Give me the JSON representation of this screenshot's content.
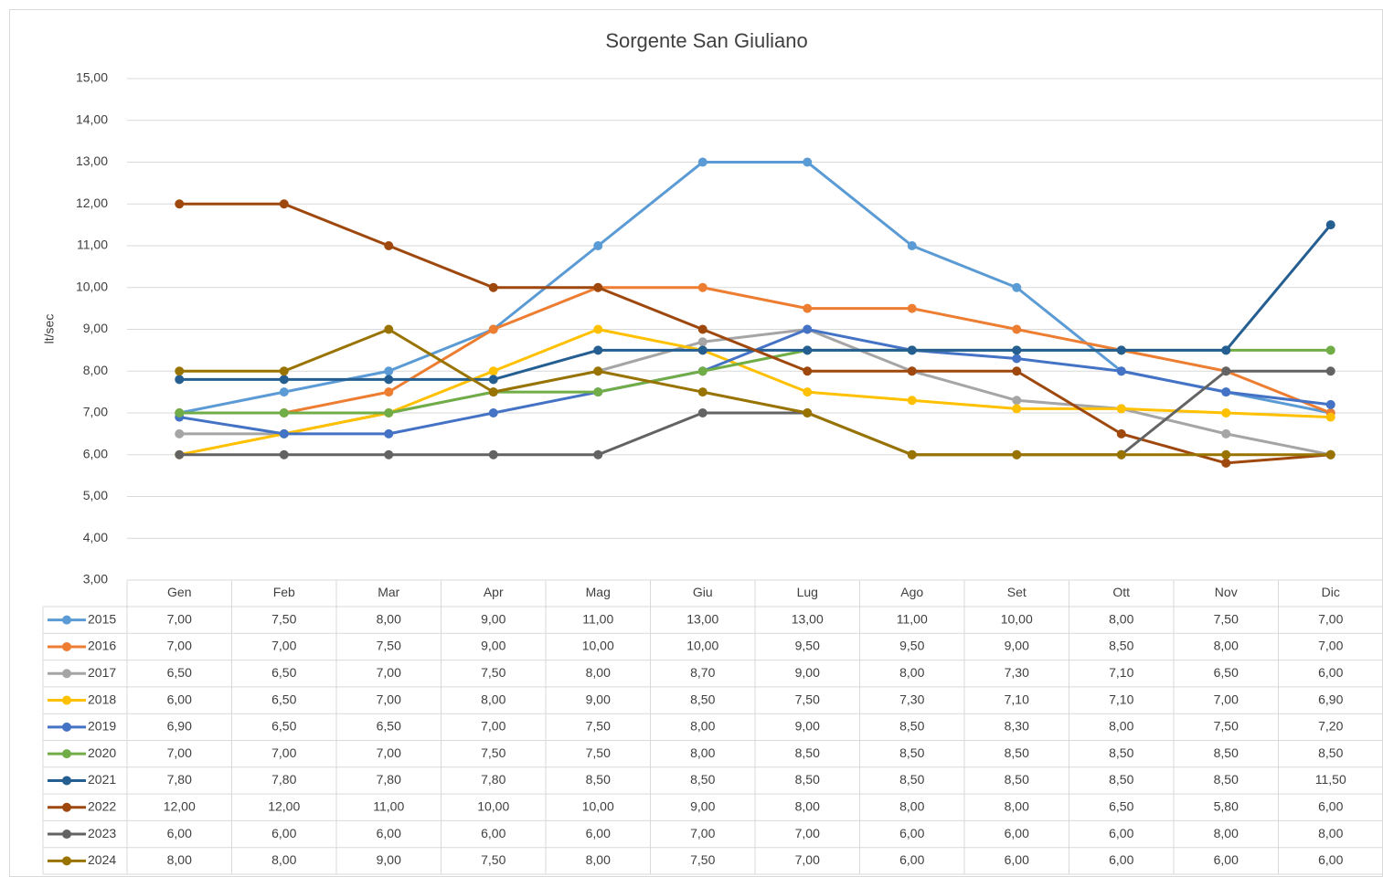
{
  "chart_data": {
    "type": "line",
    "title": "Sorgente San Giuliano",
    "y_label": "lt/sec",
    "categories": [
      "Gen",
      "Feb",
      "Mar",
      "Apr",
      "Mag",
      "Giu",
      "Lug",
      "Ago",
      "Set",
      "Ott",
      "Nov",
      "Dic"
    ],
    "ylim": [
      3,
      15
    ],
    "yticks": [
      {
        "value": 3,
        "label": "3,00"
      },
      {
        "value": 4,
        "label": "4,00"
      },
      {
        "value": 5,
        "label": "5,00"
      },
      {
        "value": 6,
        "label": "6,00"
      },
      {
        "value": 7,
        "label": "7,00"
      },
      {
        "value": 8,
        "label": "8,00"
      },
      {
        "value": 9,
        "label": "9,00"
      },
      {
        "value": 10,
        "label": "10,00"
      },
      {
        "value": 11,
        "label": "11,00"
      },
      {
        "value": 12,
        "label": "12,00"
      },
      {
        "value": 13,
        "label": "13,00"
      },
      {
        "value": 14,
        "label": "14,00"
      },
      {
        "value": 15,
        "label": "15,00"
      }
    ],
    "grid": true,
    "series": [
      {
        "name": "2015",
        "color": "#5b9bd5",
        "values": [
          7,
          7.5,
          8,
          9,
          11,
          13,
          13,
          11,
          10,
          8,
          7.5,
          7
        ],
        "value_labels": [
          "7,00",
          "7,50",
          "8,00",
          "9,00",
          "11,00",
          "13,00",
          "13,00",
          "11,00",
          "10,00",
          "8,00",
          "7,50",
          "7,00"
        ]
      },
      {
        "name": "2016",
        "color": "#ed7d31",
        "values": [
          7,
          7,
          7.5,
          9,
          10,
          10,
          9.5,
          9.5,
          9,
          8.5,
          8,
          7
        ],
        "value_labels": [
          "7,00",
          "7,00",
          "7,50",
          "9,00",
          "10,00",
          "10,00",
          "9,50",
          "9,50",
          "9,00",
          "8,50",
          "8,00",
          "7,00"
        ]
      },
      {
        "name": "2017",
        "color": "#a5a5a5",
        "values": [
          6.5,
          6.5,
          7,
          7.5,
          8,
          8.7,
          9,
          8,
          7.3,
          7.1,
          6.5,
          6
        ],
        "value_labels": [
          "6,50",
          "6,50",
          "7,00",
          "7,50",
          "8,00",
          "8,70",
          "9,00",
          "8,00",
          "7,30",
          "7,10",
          "6,50",
          "6,00"
        ]
      },
      {
        "name": "2018",
        "color": "#ffc000",
        "values": [
          6,
          6.5,
          7,
          8,
          9,
          8.5,
          7.5,
          7.3,
          7.1,
          7.1,
          7,
          6.9
        ],
        "value_labels": [
          "6,00",
          "6,50",
          "7,00",
          "8,00",
          "9,00",
          "8,50",
          "7,50",
          "7,30",
          "7,10",
          "7,10",
          "7,00",
          "6,90"
        ]
      },
      {
        "name": "2019",
        "color": "#4472c4",
        "values": [
          6.9,
          6.5,
          6.5,
          7,
          7.5,
          8,
          9,
          8.5,
          8.3,
          8,
          7.5,
          7.2
        ],
        "value_labels": [
          "6,90",
          "6,50",
          "6,50",
          "7,00",
          "7,50",
          "8,00",
          "9,00",
          "8,50",
          "8,30",
          "8,00",
          "7,50",
          "7,20"
        ]
      },
      {
        "name": "2020",
        "color": "#70ad47",
        "values": [
          7,
          7,
          7,
          7.5,
          7.5,
          8,
          8.5,
          8.5,
          8.5,
          8.5,
          8.5,
          8.5
        ],
        "value_labels": [
          "7,00",
          "7,00",
          "7,00",
          "7,50",
          "7,50",
          "8,00",
          "8,50",
          "8,50",
          "8,50",
          "8,50",
          "8,50",
          "8,50"
        ]
      },
      {
        "name": "2021",
        "color": "#255e91",
        "values": [
          7.8,
          7.8,
          7.8,
          7.8,
          8.5,
          8.5,
          8.5,
          8.5,
          8.5,
          8.5,
          8.5,
          11.5
        ],
        "value_labels": [
          "7,80",
          "7,80",
          "7,80",
          "7,80",
          "8,50",
          "8,50",
          "8,50",
          "8,50",
          "8,50",
          "8,50",
          "8,50",
          "11,50"
        ]
      },
      {
        "name": "2022",
        "color": "#9e480e",
        "values": [
          12,
          12,
          11,
          10,
          10,
          9,
          8,
          8,
          8,
          6.5,
          5.8,
          6
        ],
        "value_labels": [
          "12,00",
          "12,00",
          "11,00",
          "10,00",
          "10,00",
          "9,00",
          "8,00",
          "8,00",
          "8,00",
          "6,50",
          "5,80",
          "6,00"
        ]
      },
      {
        "name": "2023",
        "color": "#636363",
        "values": [
          6,
          6,
          6,
          6,
          6,
          7,
          7,
          6,
          6,
          6,
          8,
          8
        ],
        "value_labels": [
          "6,00",
          "6,00",
          "6,00",
          "6,00",
          "6,00",
          "7,00",
          "7,00",
          "6,00",
          "6,00",
          "6,00",
          "8,00",
          "8,00"
        ]
      },
      {
        "name": "2024",
        "color": "#997300",
        "values": [
          8,
          8,
          9,
          7.5,
          8,
          7.5,
          7,
          6,
          6,
          6,
          6,
          6
        ],
        "value_labels": [
          "8,00",
          "8,00",
          "9,00",
          "7,50",
          "8,00",
          "7,50",
          "7,00",
          "6,00",
          "6,00",
          "6,00",
          "6,00",
          "6,00"
        ]
      }
    ]
  }
}
